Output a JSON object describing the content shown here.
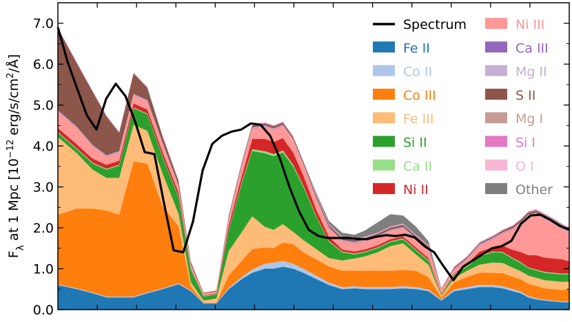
{
  "chart_data": {
    "type": "area",
    "title": "",
    "xlabel": "",
    "ylabel": "F",
    "ylabel_sub": "λ",
    "ylabel_rest": " at 1 Mpc [10",
    "ylabel_exp": "−12",
    "ylabel_units": " erg/s/cm",
    "ylabel_sq": "2",
    "ylabel_end": "/Å]",
    "ylim": [
      0,
      7.5
    ],
    "yticks": [
      0.0,
      1.0,
      2.0,
      3.0,
      4.0,
      5.0,
      6.0,
      7.0
    ],
    "ytick_labels": [
      "0.0",
      "1.0",
      "2.0",
      "3.0",
      "4.0",
      "5.0",
      "6.0",
      "7.0"
    ],
    "x": [
      0,
      0.037,
      0.068,
      0.095,
      0.12,
      0.148,
      0.175,
      0.205,
      0.236,
      0.26,
      0.285,
      0.31,
      0.334,
      0.36,
      0.38,
      0.405,
      0.422,
      0.44,
      0.46,
      0.48,
      0.505,
      0.53,
      0.556,
      0.58,
      0.6,
      0.625,
      0.65,
      0.675,
      0.7,
      0.725,
      0.75,
      0.775,
      0.8,
      0.825,
      0.85,
      0.87,
      0.89,
      0.905,
      0.92,
      0.935,
      0.952,
      0.97,
      0.985,
      1.0
    ],
    "series": [
      {
        "name": "Fe II",
        "color": "#1f77b4",
        "values": [
          0.6,
          0.5,
          0.4,
          0.3,
          0.3,
          0.3,
          0.4,
          0.5,
          0.62,
          0.45,
          0.15,
          0.15,
          0.5,
          0.75,
          0.9,
          1.0,
          1.0,
          1.05,
          1.0,
          0.9,
          0.75,
          0.6,
          0.5,
          0.52,
          0.5,
          0.5,
          0.5,
          0.52,
          0.5,
          0.45,
          0.22,
          0.45,
          0.5,
          0.55,
          0.55,
          0.52,
          0.45,
          0.4,
          0.3,
          0.25,
          0.22,
          0.2,
          0.18,
          0.18
        ]
      },
      {
        "name": "Co II",
        "color": "#aec7e8",
        "values": [
          0.02,
          0.02,
          0.02,
          0.02,
          0.02,
          0.02,
          0.02,
          0.02,
          0.02,
          0.02,
          0.01,
          0.01,
          0.03,
          0.05,
          0.08,
          0.12,
          0.15,
          0.14,
          0.12,
          0.1,
          0.08,
          0.06,
          0.05,
          0.05,
          0.05,
          0.05,
          0.05,
          0.05,
          0.05,
          0.04,
          0.02,
          0.04,
          0.05,
          0.05,
          0.05,
          0.05,
          0.05,
          0.04,
          0.03,
          0.03,
          0.02,
          0.02,
          0.02,
          0.02
        ]
      },
      {
        "name": "Co III",
        "color": "#ff7f0e",
        "values": [
          1.7,
          1.95,
          2.05,
          2.1,
          2.0,
          3.3,
          3.15,
          2.0,
          1.4,
          0.1,
          0.01,
          0.01,
          0.3,
          0.4,
          0.5,
          0.4,
          0.35,
          0.45,
          0.48,
          0.4,
          0.4,
          0.4,
          0.4,
          0.38,
          0.4,
          0.4,
          0.4,
          0.4,
          0.4,
          0.3,
          0.05,
          0.18,
          0.25,
          0.3,
          0.3,
          0.32,
          0.3,
          0.3,
          0.3,
          0.3,
          0.28,
          0.28,
          0.28,
          0.28
        ]
      },
      {
        "name": "Fe III",
        "color": "#ffbb78",
        "values": [
          1.9,
          1.35,
          0.95,
          0.8,
          0.9,
          0.9,
          0.8,
          0.8,
          0.3,
          0.1,
          0.05,
          0.1,
          0.6,
          0.7,
          0.8,
          0.5,
          0.45,
          0.45,
          0.3,
          0.3,
          0.25,
          0.2,
          0.25,
          0.3,
          0.35,
          0.45,
          0.6,
          0.65,
          0.4,
          0.3,
          0.05,
          0.1,
          0.15,
          0.2,
          0.25,
          0.25,
          0.22,
          0.2,
          0.2,
          0.2,
          0.2,
          0.2,
          0.2,
          0.2
        ]
      },
      {
        "name": "Si II",
        "color": "#2ca02c",
        "values": [
          0.1,
          0.1,
          0.15,
          0.2,
          0.3,
          0.4,
          0.4,
          0.4,
          0.4,
          0.3,
          0.1,
          0.1,
          0.5,
          1.2,
          1.6,
          1.8,
          1.8,
          1.75,
          1.6,
          1.3,
          0.8,
          0.4,
          0.2,
          0.1,
          0.1,
          0.1,
          0.1,
          0.1,
          0.1,
          0.1,
          0.02,
          0.08,
          0.1,
          0.2,
          0.25,
          0.25,
          0.22,
          0.2,
          0.18,
          0.18,
          0.18,
          0.18,
          0.18,
          0.18
        ]
      },
      {
        "name": "Ca II",
        "color": "#98df8a",
        "values": [
          0.02,
          0.02,
          0.02,
          0.02,
          0.02,
          0.02,
          0.02,
          0.02,
          0.02,
          0.02,
          0.01,
          0.01,
          0.02,
          0.03,
          0.04,
          0.05,
          0.05,
          0.05,
          0.04,
          0.03,
          0.02,
          0.02,
          0.02,
          0.02,
          0.02,
          0.02,
          0.02,
          0.02,
          0.02,
          0.02,
          0.01,
          0.01,
          0.02,
          0.02,
          0.02,
          0.02,
          0.02,
          0.02,
          0.02,
          0.02,
          0.02,
          0.02,
          0.02,
          0.02
        ]
      },
      {
        "name": "Ni II",
        "color": "#d62728",
        "values": [
          0.1,
          0.1,
          0.1,
          0.1,
          0.1,
          0.1,
          0.1,
          0.1,
          0.1,
          0.02,
          0.01,
          0.02,
          0.1,
          0.15,
          0.25,
          0.3,
          0.3,
          0.3,
          0.3,
          0.25,
          0.15,
          0.1,
          0.05,
          0.05,
          0.05,
          0.05,
          0.05,
          0.05,
          0.05,
          0.05,
          0.02,
          0.02,
          0.05,
          0.1,
          0.1,
          0.15,
          0.2,
          0.25,
          0.3,
          0.35,
          0.35,
          0.35,
          0.35,
          0.3
        ]
      },
      {
        "name": "Ni III",
        "color": "#ff9896",
        "values": [
          0.4,
          0.4,
          0.3,
          0.2,
          0.2,
          0.2,
          0.2,
          0.2,
          0.15,
          0.08,
          0.05,
          0.05,
          0.15,
          0.25,
          0.25,
          0.3,
          0.3,
          0.3,
          0.3,
          0.25,
          0.25,
          0.2,
          0.2,
          0.2,
          0.2,
          0.2,
          0.2,
          0.2,
          0.2,
          0.2,
          0.1,
          0.1,
          0.1,
          0.15,
          0.2,
          0.3,
          0.5,
          0.7,
          0.95,
          1.0,
          0.95,
          0.85,
          0.75,
          0.7
        ]
      },
      {
        "name": "Ca III",
        "color": "#9467bd",
        "values": [
          0.01,
          0.01,
          0.01,
          0.01,
          0.01,
          0.01,
          0.01,
          0.01,
          0.01,
          0.01,
          0.0,
          0.0,
          0.01,
          0.01,
          0.01,
          0.01,
          0.01,
          0.01,
          0.01,
          0.01,
          0.01,
          0.01,
          0.01,
          0.01,
          0.01,
          0.01,
          0.01,
          0.01,
          0.01,
          0.01,
          0.0,
          0.01,
          0.01,
          0.01,
          0.01,
          0.01,
          0.01,
          0.01,
          0.01,
          0.01,
          0.01,
          0.01,
          0.01,
          0.01
        ]
      },
      {
        "name": "Mg II",
        "color": "#c5b0d5",
        "values": [
          0.02,
          0.02,
          0.02,
          0.02,
          0.02,
          0.02,
          0.02,
          0.02,
          0.02,
          0.01,
          0.0,
          0.0,
          0.02,
          0.02,
          0.02,
          0.02,
          0.02,
          0.02,
          0.02,
          0.02,
          0.02,
          0.02,
          0.02,
          0.02,
          0.02,
          0.02,
          0.02,
          0.02,
          0.02,
          0.02,
          0.01,
          0.01,
          0.02,
          0.02,
          0.02,
          0.02,
          0.02,
          0.02,
          0.03,
          0.03,
          0.03,
          0.03,
          0.03,
          0.03
        ]
      },
      {
        "name": "S II",
        "color": "#8c564b",
        "values": [
          2.0,
          1.55,
          1.3,
          0.95,
          0.45,
          0.5,
          0.3,
          0.15,
          0.1,
          0.05,
          0.02,
          0.02,
          0.05,
          0.05,
          0.05,
          0.05,
          0.05,
          0.05,
          0.05,
          0.05,
          0.05,
          0.05,
          0.05,
          0.05,
          0.05,
          0.05,
          0.05,
          0.05,
          0.05,
          0.05,
          0.02,
          0.03,
          0.03,
          0.03,
          0.03,
          0.04,
          0.05,
          0.05,
          0.05,
          0.05,
          0.05,
          0.05,
          0.05,
          0.05
        ]
      },
      {
        "name": "Mg I",
        "color": "#c49c94",
        "values": [
          0.01,
          0.01,
          0.01,
          0.01,
          0.01,
          0.01,
          0.01,
          0.01,
          0.01,
          0.01,
          0.0,
          0.0,
          0.01,
          0.01,
          0.01,
          0.01,
          0.01,
          0.01,
          0.01,
          0.01,
          0.01,
          0.01,
          0.01,
          0.01,
          0.01,
          0.01,
          0.01,
          0.01,
          0.01,
          0.01,
          0.0,
          0.01,
          0.01,
          0.01,
          0.01,
          0.01,
          0.01,
          0.01,
          0.02,
          0.02,
          0.02,
          0.02,
          0.02,
          0.02
        ]
      },
      {
        "name": "Si I",
        "color": "#e377c2",
        "values": [
          0.01,
          0.01,
          0.01,
          0.01,
          0.01,
          0.01,
          0.01,
          0.01,
          0.01,
          0.01,
          0.0,
          0.0,
          0.01,
          0.01,
          0.01,
          0.01,
          0.01,
          0.01,
          0.01,
          0.01,
          0.01,
          0.01,
          0.01,
          0.01,
          0.01,
          0.01,
          0.01,
          0.01,
          0.01,
          0.01,
          0.0,
          0.01,
          0.01,
          0.01,
          0.01,
          0.01,
          0.01,
          0.01,
          0.01,
          0.01,
          0.01,
          0.01,
          0.01,
          0.01
        ]
      },
      {
        "name": "O I",
        "color": "#f7b6d2",
        "values": [
          0.01,
          0.01,
          0.01,
          0.01,
          0.01,
          0.01,
          0.01,
          0.01,
          0.01,
          0.01,
          0.0,
          0.0,
          0.01,
          0.01,
          0.01,
          0.01,
          0.01,
          0.01,
          0.01,
          0.01,
          0.01,
          0.01,
          0.01,
          0.01,
          0.01,
          0.01,
          0.01,
          0.01,
          0.01,
          0.01,
          0.0,
          0.01,
          0.01,
          0.01,
          0.01,
          0.01,
          0.01,
          0.01,
          0.01,
          0.01,
          0.01,
          0.01,
          0.01,
          0.01
        ]
      },
      {
        "name": "Other",
        "color": "#7f7f7f",
        "values": [
          0.0,
          0.0,
          0.0,
          0.0,
          0.0,
          0.0,
          0.0,
          0.0,
          0.0,
          0.0,
          0.0,
          0.0,
          0.0,
          0.0,
          0.0,
          0.0,
          0.0,
          0.0,
          0.0,
          0.0,
          0.05,
          0.08,
          0.1,
          0.1,
          0.15,
          0.25,
          0.3,
          0.2,
          0.2,
          0.1,
          0.0,
          0.0,
          0.0,
          0.0,
          0.0,
          0.0,
          0.0,
          0.0,
          0.0,
          0.0,
          0.0,
          0.0,
          0.0,
          0.0
        ]
      }
    ],
    "spectrum": {
      "name": "Spectrum",
      "color": "#000000",
      "values": [
        6.9,
        6.06,
        5.4,
        4.75,
        4.4,
        5.15,
        5.52,
        5.22,
        4.6,
        3.85,
        3.8,
        2.6,
        1.45,
        1.4,
        2.15,
        3.4,
        4.05,
        4.25,
        4.35,
        4.4,
        4.55,
        4.52,
        4.25,
        3.7,
        3.0,
        2.4,
        1.95,
        1.8,
        1.75,
        1.75,
        1.75,
        1.73,
        1.72,
        1.78,
        1.82,
        1.8,
        1.83,
        1.76,
        1.55,
        1.4,
        1.05,
        0.72,
        1.05,
        1.2,
        1.35,
        1.5,
        1.55,
        1.68,
        2.1,
        2.3,
        2.32,
        2.2,
        2.05,
        1.95
      ]
    },
    "legend": {
      "placement": "top-right",
      "columns": 2,
      "entries": [
        "Spectrum",
        "Fe II",
        "Co II",
        "Co III",
        "Fe III",
        "Si II",
        "Ca II",
        "Ni II",
        "Ni III",
        "Ca III",
        "Mg II",
        "S II",
        "Mg I",
        "Si I",
        "O I",
        "Other"
      ]
    }
  }
}
